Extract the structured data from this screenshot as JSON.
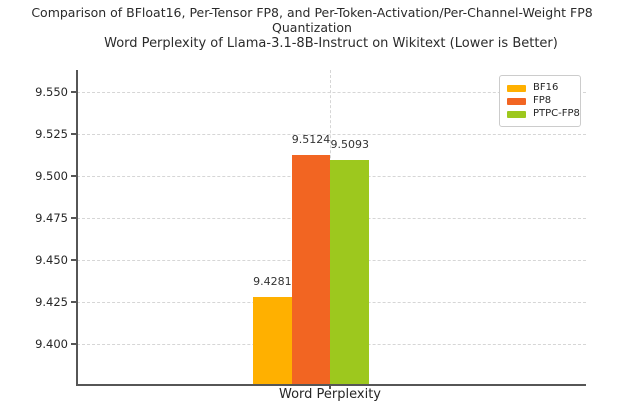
{
  "header": {
    "suptitle": "Comparison of BFloat16, Per-Tensor FP8, and Per-Token-Activation/Per-Channel-Weight FP8 Quantization"
  },
  "chart_data": {
    "type": "bar",
    "title": "Word Perplexity of Llama-3.1-8B-Instruct on Wikitext (Lower is Better)",
    "categories": [
      "Word Perplexity"
    ],
    "series": [
      {
        "name": "BF16",
        "values": [
          9.4281
        ],
        "label": "9.4281",
        "color": "#FFB000"
      },
      {
        "name": "FP8",
        "values": [
          9.5124
        ],
        "label": "9.5124",
        "color": "#F26522"
      },
      {
        "name": "PTPC-FP8",
        "values": [
          9.5093
        ],
        "label": "9.5093",
        "color": "#9DC81E"
      }
    ],
    "xlabel": "",
    "ylabel": "",
    "yticks": [
      9.4,
      9.425,
      9.45,
      9.475,
      9.5,
      9.525,
      9.55
    ],
    "ytick_labels": [
      "9.400",
      "9.425",
      "9.450",
      "9.475",
      "9.500",
      "9.525",
      "9.550"
    ],
    "ylim": [
      9.3762,
      9.5631
    ],
    "grid": "dashed horizontal gridlines at y ticks plus one dashed vertical gridline at the category tick",
    "legend_position": "upper right",
    "legend_entries": [
      "BF16",
      "FP8",
      "PTPC-FP8"
    ],
    "spine_color": "#565656",
    "grid_color": "#d6d6d6",
    "background_color": "#ffffff"
  }
}
